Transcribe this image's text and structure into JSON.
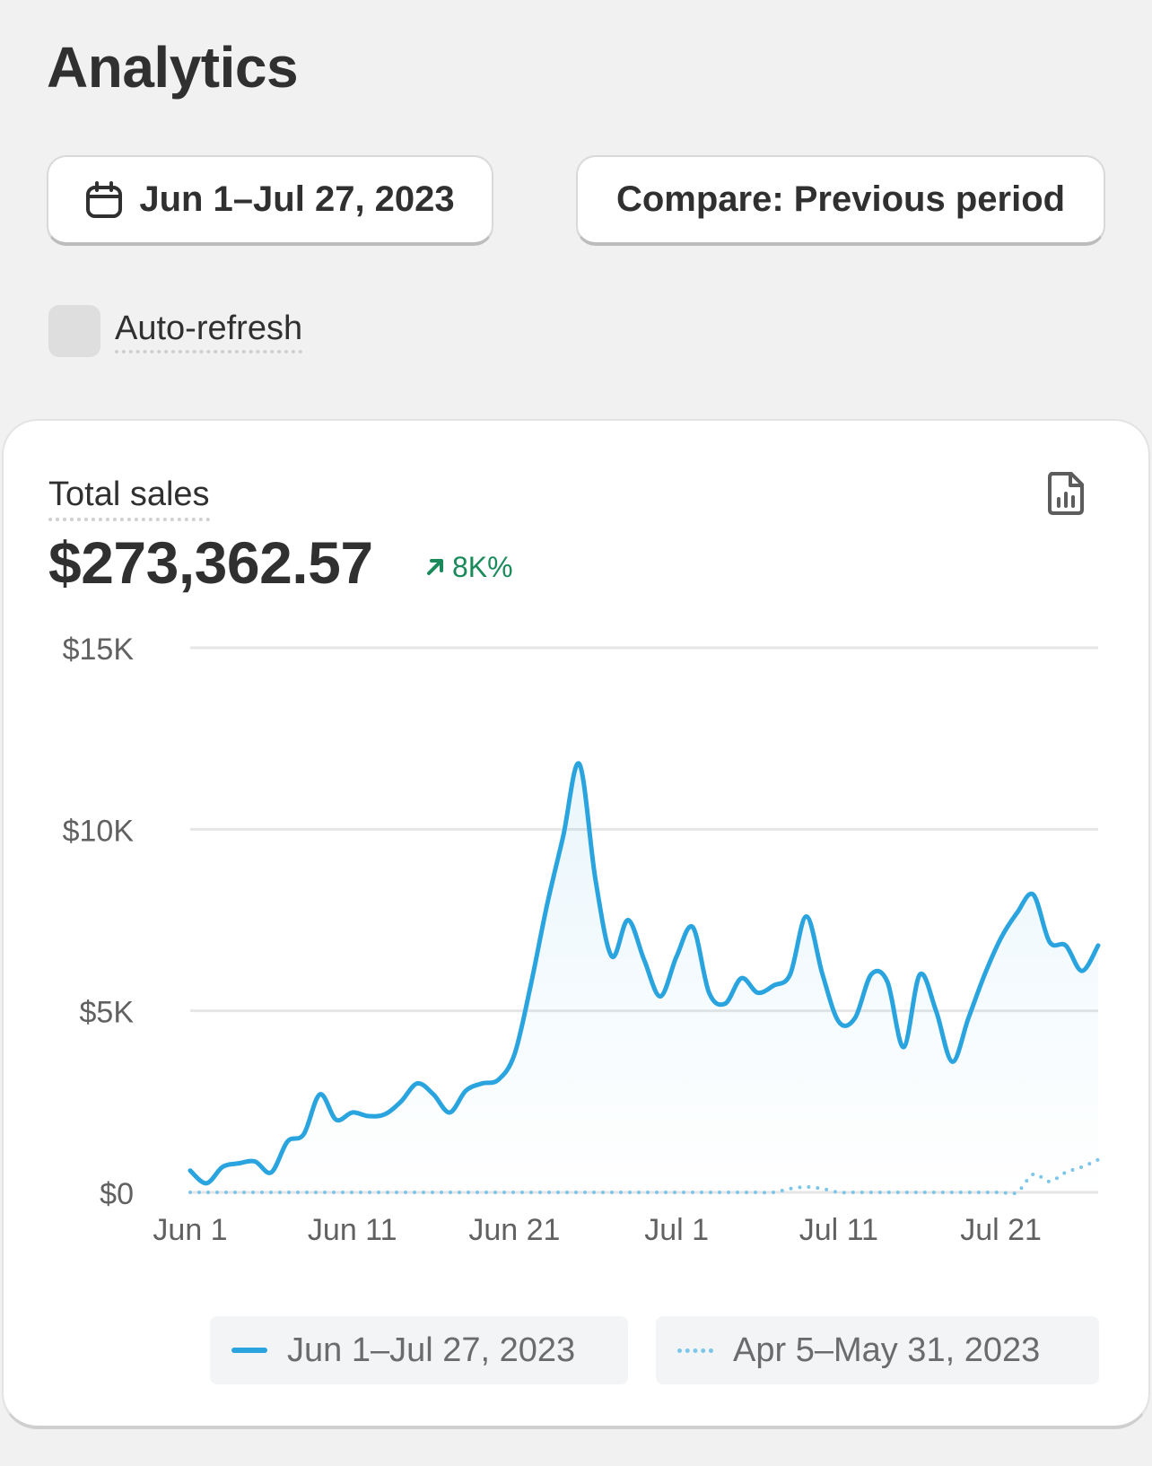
{
  "page": {
    "title": "Analytics"
  },
  "toolbar": {
    "date_range_label": "Jun 1–Jul 27, 2023",
    "date_icon": "calendar-icon",
    "compare_label": "Compare: Previous period",
    "auto_refresh_label": "Auto-refresh",
    "auto_refresh_checked": false
  },
  "card": {
    "metric_label": "Total sales",
    "metric_value": "$273,362.57",
    "metric_change": "8K%",
    "metric_change_icon": "arrow-up-right-icon",
    "report_icon": "report-icon"
  },
  "colors": {
    "current": "#2aa4de",
    "previous": "#7cc6ea",
    "positive": "#1a8a5a",
    "grid": "#e6e6e6"
  },
  "legend": {
    "current_label": "Jun 1–Jul 27, 2023",
    "previous_label": "Apr 5–May 31, 2023"
  },
  "chart_data": {
    "type": "line",
    "ylim": [
      0,
      15000
    ],
    "y_ticks": [
      0,
      5000,
      10000,
      15000
    ],
    "y_tick_labels": [
      "$0",
      "$5K",
      "$10K",
      "$15K"
    ],
    "x_ticks": [
      0,
      10,
      20,
      30,
      40,
      50
    ],
    "x_tick_labels": [
      "Jun 1",
      "Jun 11",
      "Jun 21",
      "Jul 1",
      "Jul 11",
      "Jul 21"
    ],
    "grid": true,
    "legend_position": "bottom",
    "series": [
      {
        "name": "Jun 1–Jul 27, 2023",
        "style": "solid",
        "area": true,
        "values": [
          600,
          250,
          700,
          800,
          850,
          550,
          1400,
          1600,
          2700,
          2000,
          2200,
          2100,
          2150,
          2500,
          3000,
          2700,
          2200,
          2800,
          3000,
          3100,
          3800,
          5700,
          7900,
          9800,
          11800,
          8600,
          6500,
          7500,
          6400,
          5400,
          6500,
          7300,
          5500,
          5200,
          5900,
          5500,
          5700,
          6000,
          7600,
          6000,
          4700,
          4800,
          6000,
          5800,
          4000,
          6000,
          5000,
          3600,
          4800,
          6000,
          7000,
          7700,
          8200,
          6900,
          6800,
          6100,
          6800
        ]
      },
      {
        "name": "Apr 5–May 31, 2023",
        "style": "dotted",
        "area": false,
        "values": [
          0,
          0,
          0,
          0,
          0,
          0,
          0,
          0,
          0,
          0,
          0,
          0,
          0,
          0,
          0,
          0,
          0,
          0,
          0,
          0,
          0,
          0,
          0,
          0,
          0,
          0,
          0,
          0,
          0,
          0,
          0,
          0,
          0,
          0,
          0,
          0,
          0,
          100,
          150,
          100,
          0,
          0,
          0,
          0,
          0,
          0,
          0,
          0,
          0,
          0,
          0,
          0,
          500,
          300,
          550,
          700,
          900
        ]
      }
    ]
  }
}
